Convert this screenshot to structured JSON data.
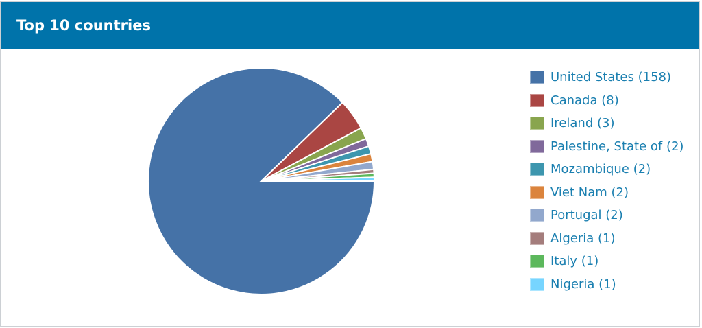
{
  "header": {
    "title": "Top 10 countries"
  },
  "chart_data": {
    "type": "pie",
    "title": "Top 10 countries",
    "legend_position": "right",
    "slices": [
      {
        "label": "United States (158)",
        "name": "United States",
        "value": 158,
        "color": "#4572a7"
      },
      {
        "label": "Canada (8)",
        "name": "Canada",
        "value": 8,
        "color": "#aa4643"
      },
      {
        "label": "Ireland (3)",
        "name": "Ireland",
        "value": 3,
        "color": "#89a54e"
      },
      {
        "label": "Palestine, State of (2)",
        "name": "Palestine, State of",
        "value": 2,
        "color": "#80699b"
      },
      {
        "label": "Mozambique (2)",
        "name": "Mozambique",
        "value": 2,
        "color": "#3d96ae"
      },
      {
        "label": "Viet Nam (2)",
        "name": "Viet Nam",
        "value": 2,
        "color": "#db843d"
      },
      {
        "label": "Portugal (2)",
        "name": "Portugal",
        "value": 2,
        "color": "#92a8cd"
      },
      {
        "label": "Algeria (1)",
        "name": "Algeria",
        "value": 1,
        "color": "#a47d7c"
      },
      {
        "label": "Italy (1)",
        "name": "Italy",
        "value": 1,
        "color": "#5cb85c"
      },
      {
        "label": "Nigeria (1)",
        "name": "Nigeria",
        "value": 1,
        "color": "#77d5ff"
      }
    ]
  }
}
